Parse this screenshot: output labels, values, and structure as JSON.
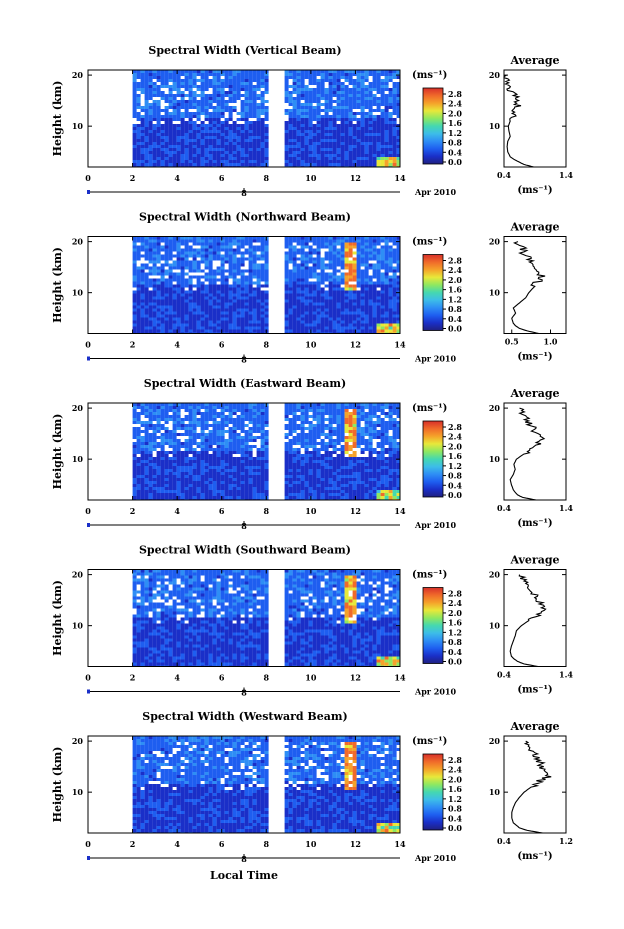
{
  "figure": {
    "xlabel": "Local Time",
    "date_label": "Apr 2010",
    "day_label": "8"
  },
  "colorbar": {
    "unit": "(ms⁻¹)",
    "ticks": [
      "2.8",
      "2.4",
      "2.0",
      "1.6",
      "1.2",
      "0.8",
      "0.4",
      "0.0"
    ],
    "colors": [
      "#202080",
      "#1a2fc8",
      "#1e5ef0",
      "#2e8ef5",
      "#3dbde8",
      "#45d8b0",
      "#8fe860",
      "#e8e83a",
      "#f5a22a",
      "#f06a2a",
      "#d8302a"
    ]
  },
  "chart_data": [
    {
      "type": "heatmap",
      "title": "Spectral Width (Vertical Beam)",
      "ylabel": "Height (km)",
      "x_ticks": [
        "0",
        "2",
        "4",
        "6",
        "8",
        "10",
        "12",
        "14"
      ],
      "y_ticks": [
        "20",
        "10"
      ],
      "xlim": [
        0,
        14
      ],
      "ylim": [
        2,
        21
      ],
      "data_gaps_hours": [
        [
          0,
          2
        ],
        [
          8,
          8.8
        ]
      ],
      "clim": [
        0,
        3.0
      ],
      "profile": {
        "title": "Average",
        "xlabel": "(ms⁻¹)",
        "x_ticks": [
          "0.4",
          "1.4"
        ],
        "xlim": [
          0.4,
          1.4
        ],
        "y_ticks": [
          "20",
          "10"
        ],
        "ylim": [
          2,
          21
        ],
        "height_km": [
          2,
          2.5,
          3,
          3.5,
          4,
          5,
          6,
          7,
          8,
          9,
          10,
          11,
          12,
          13,
          14,
          15,
          16,
          17,
          18,
          19,
          20
        ],
        "value": [
          0.88,
          0.72,
          0.64,
          0.56,
          0.5,
          0.46,
          0.45,
          0.46,
          0.5,
          0.48,
          0.47,
          0.5,
          0.55,
          0.58,
          0.62,
          0.6,
          0.57,
          0.5,
          0.47,
          0.44,
          0.44
        ]
      }
    },
    {
      "type": "heatmap",
      "title": "Spectral Width (Northward Beam)",
      "ylabel": "Height (km)",
      "x_ticks": [
        "0",
        "2",
        "4",
        "6",
        "8",
        "10",
        "12",
        "14"
      ],
      "y_ticks": [
        "20",
        "10"
      ],
      "xlim": [
        0,
        14
      ],
      "ylim": [
        2,
        21
      ],
      "data_gaps_hours": [
        [
          0,
          2
        ],
        [
          8,
          8.8
        ]
      ],
      "clim": [
        0,
        3.0
      ],
      "profile": {
        "title": "Average",
        "xlabel": "(ms⁻¹)",
        "x_ticks": [
          "0.5",
          "1.0"
        ],
        "xlim": [
          0.4,
          1.2
        ],
        "y_ticks": [
          "20",
          "10"
        ],
        "ylim": [
          2,
          21
        ],
        "height_km": [
          2,
          2.5,
          3,
          3.5,
          4,
          5,
          6,
          7,
          8,
          9,
          10,
          11,
          12,
          13,
          14,
          15,
          16,
          17,
          18,
          19,
          20
        ],
        "value": [
          0.85,
          0.7,
          0.6,
          0.55,
          0.52,
          0.5,
          0.55,
          0.52,
          0.6,
          0.68,
          0.72,
          0.78,
          0.82,
          0.9,
          0.85,
          0.8,
          0.75,
          0.7,
          0.65,
          0.62,
          0.58
        ]
      }
    },
    {
      "type": "heatmap",
      "title": "Spectral Width (Eastward Beam)",
      "ylabel": "Height (km)",
      "x_ticks": [
        "0",
        "2",
        "4",
        "6",
        "8",
        "10",
        "12",
        "14"
      ],
      "y_ticks": [
        "20",
        "10"
      ],
      "xlim": [
        0,
        14
      ],
      "ylim": [
        2,
        21
      ],
      "data_gaps_hours": [
        [
          0,
          2
        ],
        [
          8,
          8.8
        ]
      ],
      "clim": [
        0,
        3.0
      ],
      "profile": {
        "title": "Average",
        "xlabel": "(ms⁻¹)",
        "x_ticks": [
          "0.4",
          "1.4"
        ],
        "xlim": [
          0.4,
          1.4
        ],
        "y_ticks": [
          "20",
          "10"
        ],
        "ylim": [
          2,
          21
        ],
        "height_km": [
          2,
          2.5,
          3,
          3.5,
          4,
          5,
          6,
          7,
          8,
          9,
          10,
          11,
          12,
          13,
          14,
          15,
          16,
          17,
          18,
          19,
          20
        ],
        "value": [
          0.92,
          0.7,
          0.62,
          0.58,
          0.55,
          0.52,
          0.5,
          0.55,
          0.58,
          0.56,
          0.6,
          0.72,
          0.85,
          0.95,
          1.0,
          0.92,
          0.88,
          0.8,
          0.75,
          0.7,
          0.65
        ]
      }
    },
    {
      "type": "heatmap",
      "title": "Spectral Width (Southward Beam)",
      "ylabel": "Height (km)",
      "x_ticks": [
        "0",
        "2",
        "4",
        "6",
        "8",
        "10",
        "12",
        "14"
      ],
      "y_ticks": [
        "20",
        "10"
      ],
      "xlim": [
        0,
        14
      ],
      "ylim": [
        2,
        21
      ],
      "data_gaps_hours": [
        [
          0,
          2
        ],
        [
          8,
          8.8
        ]
      ],
      "clim": [
        0,
        3.0
      ],
      "profile": {
        "title": "Average",
        "xlabel": "(ms⁻¹)",
        "x_ticks": [
          "0.4",
          "1.4"
        ],
        "xlim": [
          0.4,
          1.4
        ],
        "y_ticks": [
          "20",
          "10"
        ],
        "ylim": [
          2,
          21
        ],
        "height_km": [
          2,
          2.5,
          3,
          3.5,
          4,
          5,
          6,
          7,
          8,
          9,
          10,
          11,
          12,
          13,
          14,
          15,
          16,
          17,
          18,
          19,
          20
        ],
        "value": [
          0.95,
          0.72,
          0.62,
          0.56,
          0.52,
          0.5,
          0.52,
          0.55,
          0.58,
          0.6,
          0.68,
          0.8,
          0.95,
          1.05,
          1.0,
          0.95,
          0.9,
          0.85,
          0.8,
          0.72,
          0.65
        ]
      }
    },
    {
      "type": "heatmap",
      "title": "Spectral Width (Westward Beam)",
      "ylabel": "Height (km)",
      "x_ticks": [
        "0",
        "2",
        "4",
        "6",
        "8",
        "10",
        "12",
        "14"
      ],
      "y_ticks": [
        "20",
        "10"
      ],
      "xlim": [
        0,
        14
      ],
      "ylim": [
        2,
        21
      ],
      "data_gaps_hours": [
        [
          0,
          2
        ],
        [
          8,
          8.8
        ]
      ],
      "clim": [
        0,
        3.0
      ],
      "profile": {
        "title": "Average",
        "xlabel": "(ms⁻¹)",
        "x_ticks": [
          "0.4",
          "1.2"
        ],
        "xlim": [
          0.4,
          1.2
        ],
        "y_ticks": [
          "20",
          "10"
        ],
        "ylim": [
          2,
          21
        ],
        "height_km": [
          2,
          2.5,
          3,
          3.5,
          4,
          5,
          6,
          7,
          8,
          9,
          10,
          11,
          12,
          13,
          14,
          15,
          16,
          17,
          18,
          19,
          20
        ],
        "value": [
          0.9,
          0.7,
          0.6,
          0.56,
          0.52,
          0.5,
          0.5,
          0.52,
          0.55,
          0.6,
          0.66,
          0.75,
          0.85,
          0.95,
          0.9,
          0.88,
          0.85,
          0.8,
          0.78,
          0.72,
          0.68
        ]
      }
    }
  ]
}
